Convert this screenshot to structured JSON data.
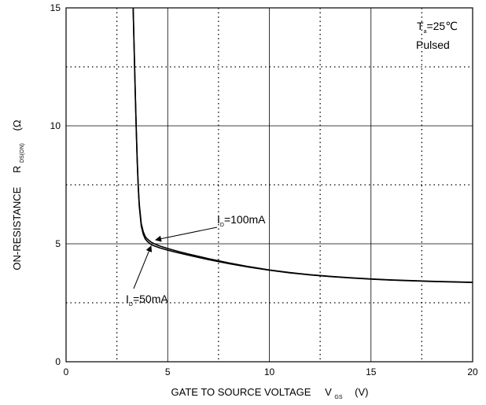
{
  "chart_data": {
    "type": "line",
    "title": "",
    "xlabel": {
      "main": "GATE TO SOURCE VOLTAGE",
      "symbol": "V",
      "subscript": "GS",
      "unit": "(V)"
    },
    "ylabel": {
      "main": "ON-RESISTANCE",
      "symbol": "R",
      "subscript": "DS(ON)",
      "unit": "(Ω"
    },
    "xlim": [
      0,
      20
    ],
    "ylim": [
      0,
      15
    ],
    "x_ticks": [
      0,
      5,
      10,
      15,
      20
    ],
    "y_ticks": [
      0,
      5,
      10,
      15
    ],
    "x_tick_labels": [
      "0",
      "5",
      "10",
      "15",
      "20"
    ],
    "y_tick_labels": [
      "0",
      "5",
      "10",
      "15"
    ],
    "grid": {
      "major": true,
      "minor_dotted_x": [
        2.5,
        7.5,
        12.5,
        17.5
      ],
      "minor_dotted_y": [
        2.5,
        7.5,
        12.5
      ]
    },
    "conditions": {
      "ta_symbol": "T",
      "ta_subscript": "a",
      "ta_value": "=25℃",
      "mode": "Pulsed"
    },
    "series": [
      {
        "label_symbol": "I",
        "label_subscript": "D",
        "label_value": "=100mA",
        "x": [
          3.3,
          3.35,
          3.4,
          3.45,
          3.5,
          3.55,
          3.6,
          3.7,
          3.8,
          3.9,
          4.0,
          4.2,
          4.4,
          4.6,
          5.0,
          5.5,
          6.0,
          7.0,
          8.0,
          9.0,
          10.0,
          11.0,
          12.0,
          13.0,
          14.0,
          15.0,
          16.0,
          17.0,
          18.0,
          19.0,
          20.0
        ],
        "y": [
          15.0,
          13.3,
          11.6,
          10.0,
          8.6,
          7.5,
          6.7,
          5.85,
          5.5,
          5.3,
          5.2,
          5.06,
          4.98,
          4.91,
          4.8,
          4.68,
          4.57,
          4.37,
          4.19,
          4.03,
          3.89,
          3.78,
          3.69,
          3.62,
          3.56,
          3.51,
          3.47,
          3.44,
          3.41,
          3.39,
          3.37
        ]
      },
      {
        "label_symbol": "I",
        "label_subscript": "D",
        "label_value": "=50mA",
        "x": [
          3.3,
          3.35,
          3.4,
          3.45,
          3.5,
          3.55,
          3.6,
          3.7,
          3.8,
          3.9,
          4.0,
          4.2,
          4.4,
          4.6,
          5.0,
          5.5,
          6.0,
          7.0,
          8.0,
          9.0,
          10.0,
          11.0,
          12.0,
          13.0,
          14.0,
          15.0,
          16.0,
          17.0,
          18.0,
          19.0,
          20.0
        ],
        "y": [
          15.0,
          13.2,
          11.5,
          9.9,
          8.5,
          7.4,
          6.6,
          5.75,
          5.4,
          5.2,
          5.1,
          4.96,
          4.89,
          4.83,
          4.73,
          4.62,
          4.52,
          4.33,
          4.16,
          4.01,
          3.88,
          3.77,
          3.68,
          3.61,
          3.55,
          3.5,
          3.46,
          3.43,
          3.4,
          3.38,
          3.36
        ]
      }
    ]
  }
}
